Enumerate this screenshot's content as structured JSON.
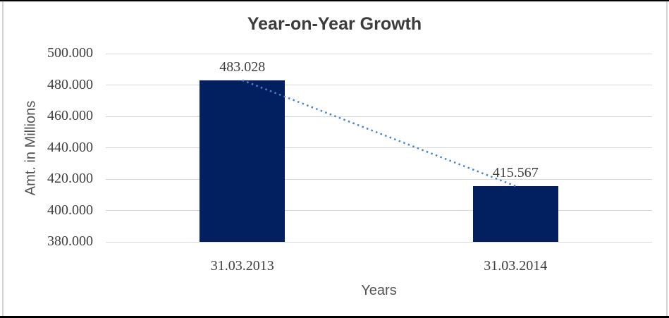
{
  "chart_data": {
    "type": "bar",
    "title": "Year-on-Year Growth",
    "xlabel": "Years",
    "ylabel": "Amt. in Millions",
    "categories": [
      "31.03.2013",
      "31.03.2014"
    ],
    "values": [
      483.028,
      415.567
    ],
    "value_labels": [
      "483.028",
      "415.567"
    ],
    "ylim": [
      380,
      500
    ],
    "yticks": [
      {
        "value": 500,
        "label": "500.000"
      },
      {
        "value": 480,
        "label": "480.000"
      },
      {
        "value": 460,
        "label": "460.000"
      },
      {
        "value": 440,
        "label": "440.000"
      },
      {
        "value": 420,
        "label": "420.000"
      },
      {
        "value": 400,
        "label": "400.000"
      },
      {
        "value": 380,
        "label": "380.000"
      }
    ],
    "grid": true,
    "legend": "none",
    "trendline": {
      "style": "dotted",
      "points": [
        483.028,
        415.567
      ]
    },
    "colors": {
      "bar": "#022060",
      "trendline": "#4d82c4",
      "gridline": "#d9d9d9",
      "tick_text": "#3f3f3f",
      "title_text": "#3c3c3c",
      "axis_title_text": "#525252"
    }
  }
}
